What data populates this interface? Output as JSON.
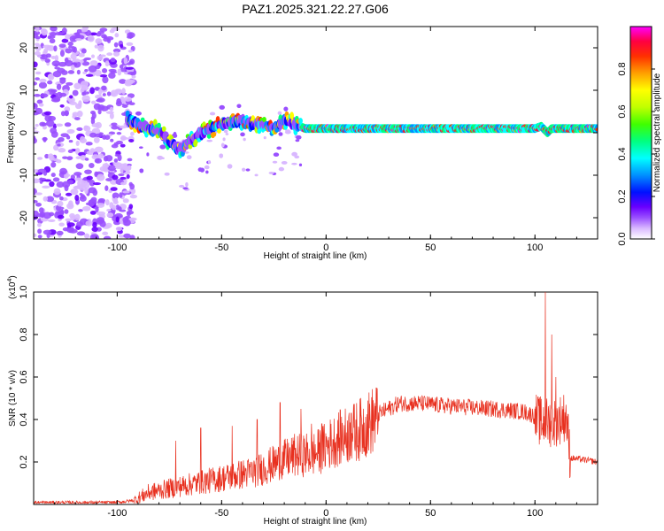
{
  "chart_data": [
    {
      "type": "heatmap",
      "title": "PAZ1.2025.321.22.27.G06",
      "xlabel": "Height of straight line (km)",
      "ylabel": "Frequency (Hz)",
      "xlim": [
        -140,
        130
      ],
      "ylim": [
        -25,
        25
      ],
      "xticks": [
        -100,
        -50,
        0,
        50,
        100
      ],
      "yticks": [
        -20,
        -10,
        0,
        10,
        20
      ],
      "colorbar": {
        "label": "Normalized spectral amplitude",
        "range": [
          0,
          1
        ],
        "ticks": [
          "0.0",
          "0.2",
          "0.4",
          "0.6",
          "0.8"
        ],
        "colors": [
          "#ffffff",
          "#d9b8ff",
          "#9a50ff",
          "#6a00ff",
          "#0010ff",
          "#0090ff",
          "#00ffff",
          "#00ff80",
          "#40ff00",
          "#c0ff00",
          "#ffff00",
          "#ffa000",
          "#ff3000",
          "#ff0040",
          "#ff00ff"
        ]
      },
      "centerline": [
        [
          -95,
          3
        ],
        [
          -90,
          2
        ],
        [
          -85,
          1
        ],
        [
          -80,
          0.5
        ],
        [
          -75,
          -2
        ],
        [
          -70,
          -4
        ],
        [
          -65,
          -2
        ],
        [
          -60,
          0
        ],
        [
          -55,
          1
        ],
        [
          -50,
          2
        ],
        [
          -45,
          2.5
        ],
        [
          -40,
          3
        ],
        [
          -35,
          2
        ],
        [
          -30,
          2
        ],
        [
          -25,
          1
        ],
        [
          -20,
          3
        ],
        [
          -15,
          2
        ],
        [
          -10,
          1
        ],
        [
          0,
          1
        ],
        [
          10,
          1
        ],
        [
          20,
          1
        ],
        [
          50,
          1
        ],
        [
          80,
          1
        ],
        [
          100,
          1
        ],
        [
          103,
          1.5
        ],
        [
          106,
          0
        ],
        [
          108,
          1
        ],
        [
          120,
          1
        ],
        [
          130,
          1
        ]
      ]
    },
    {
      "type": "line",
      "ylabel": "SNR (10 * v/v)",
      "xlabel": "Height of straight line (km)",
      "y_multiplier": "(x10",
      "y_multiplier_exp": "4",
      "y_multiplier_close": ")",
      "xlim": [
        -140,
        130
      ],
      "ylim": [
        0,
        1.0
      ],
      "xticks": [
        -100,
        -50,
        0,
        50,
        100
      ],
      "yticks": [
        "0.2",
        "0.4",
        "0.6",
        "0.8",
        "1.0"
      ],
      "color": "#e8301f",
      "envelope": [
        [
          -140,
          0.01
        ],
        [
          -100,
          0.01
        ],
        [
          -92,
          0.02
        ],
        [
          -85,
          0.06
        ],
        [
          -75,
          0.08
        ],
        [
          -65,
          0.1
        ],
        [
          -55,
          0.12
        ],
        [
          -45,
          0.14
        ],
        [
          -35,
          0.16
        ],
        [
          -25,
          0.2
        ],
        [
          -15,
          0.24
        ],
        [
          -5,
          0.25
        ],
        [
          5,
          0.32
        ],
        [
          15,
          0.36
        ],
        [
          25,
          0.43
        ],
        [
          35,
          0.48
        ],
        [
          45,
          0.48
        ],
        [
          55,
          0.47
        ],
        [
          70,
          0.46
        ],
        [
          85,
          0.45
        ],
        [
          95,
          0.44
        ],
        [
          100,
          0.42
        ],
        [
          103,
          0.4
        ],
        [
          110,
          0.4
        ],
        [
          115,
          0.43
        ],
        [
          117,
          0.22
        ],
        [
          125,
          0.21
        ],
        [
          130,
          0.2
        ]
      ],
      "spikes": [
        [
          -72,
          0.3
        ],
        [
          -60,
          0.36
        ],
        [
          -45,
          0.37
        ],
        [
          -33,
          0.4
        ],
        [
          -22,
          0.48
        ],
        [
          -12,
          0.45
        ],
        [
          -7,
          0.38
        ],
        [
          -2,
          0.38
        ],
        [
          12,
          0.43
        ],
        [
          105,
          1.0
        ],
        [
          108,
          0.8
        ],
        [
          110,
          0.6
        ]
      ]
    }
  ]
}
